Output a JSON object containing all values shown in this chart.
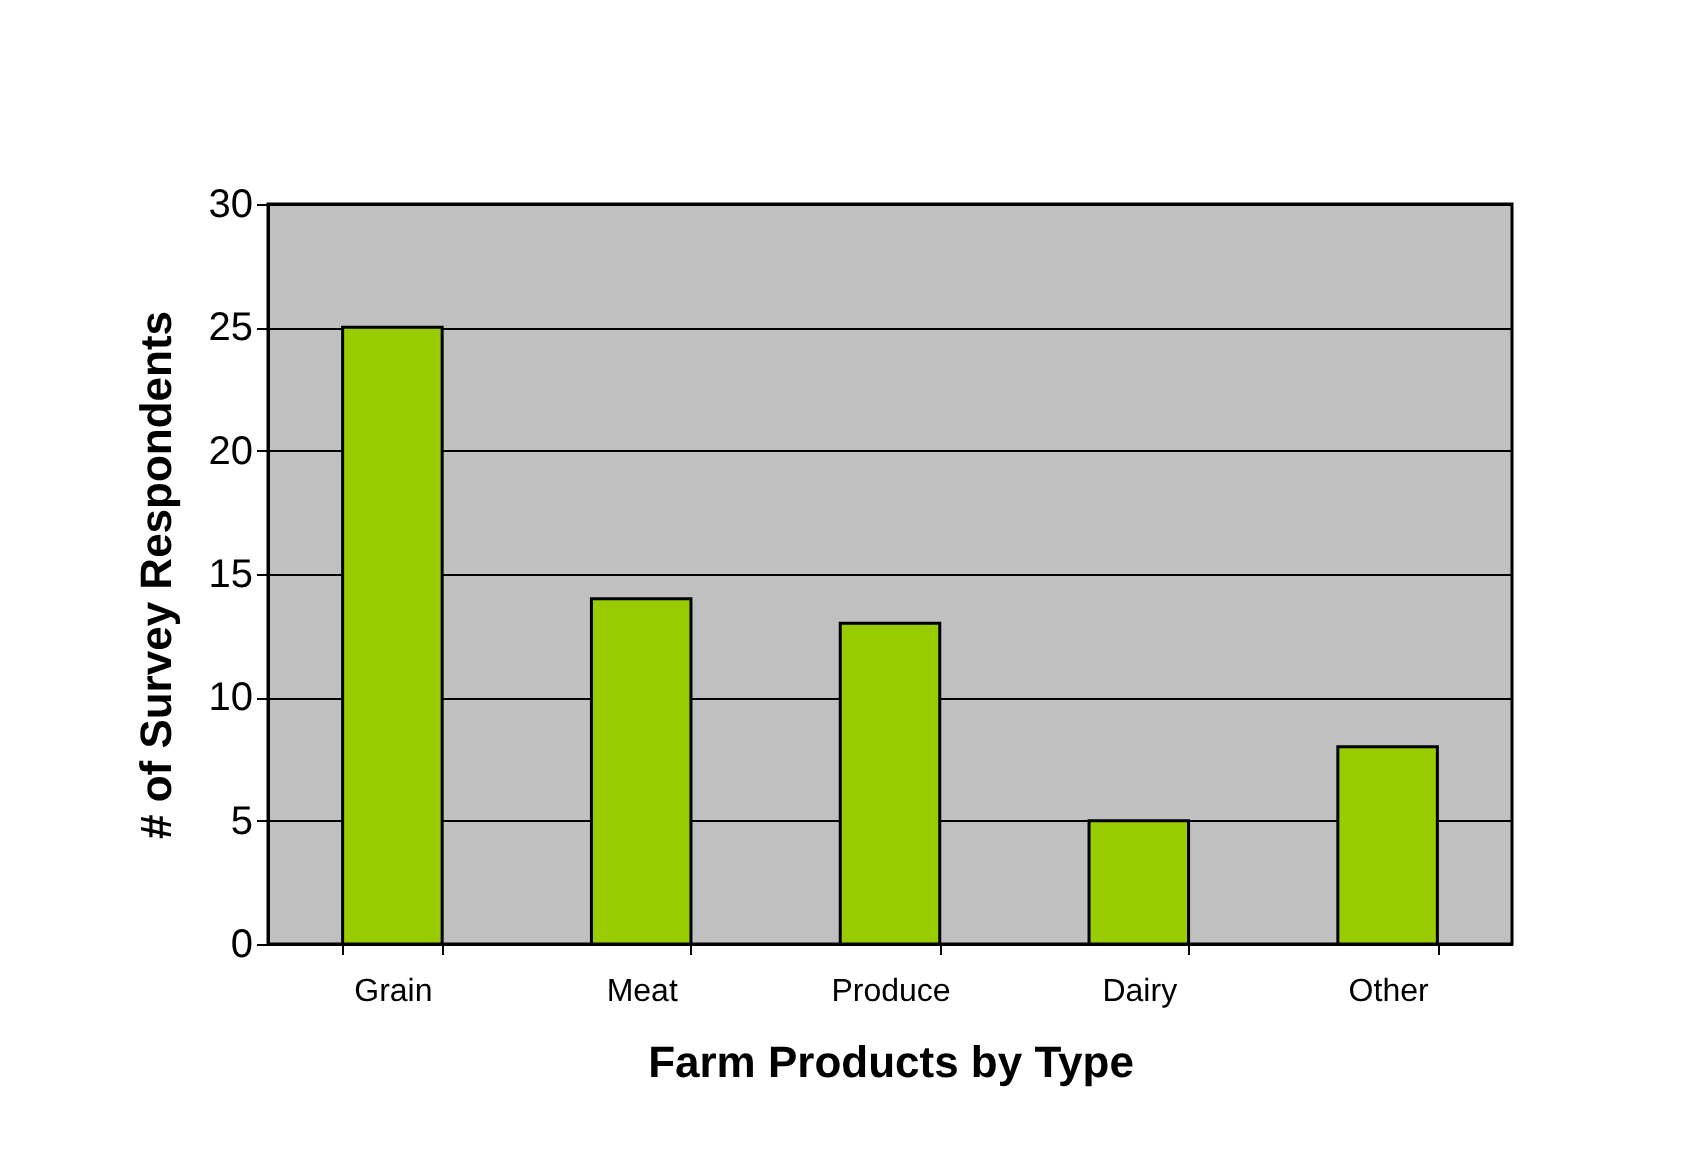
{
  "chart_data": {
    "type": "bar",
    "xlabel": "Farm Products by Type",
    "ylabel": "# of Survey Respondents",
    "categories": [
      "Grain",
      "Meat",
      "Produce",
      "Dairy",
      "Other"
    ],
    "values": [
      25,
      14,
      13,
      5,
      8
    ],
    "color": "#99cc00",
    "ylim": [
      0,
      30
    ],
    "yticks": [
      0,
      5,
      10,
      15,
      20,
      25,
      30
    ],
    "grid": "y"
  }
}
